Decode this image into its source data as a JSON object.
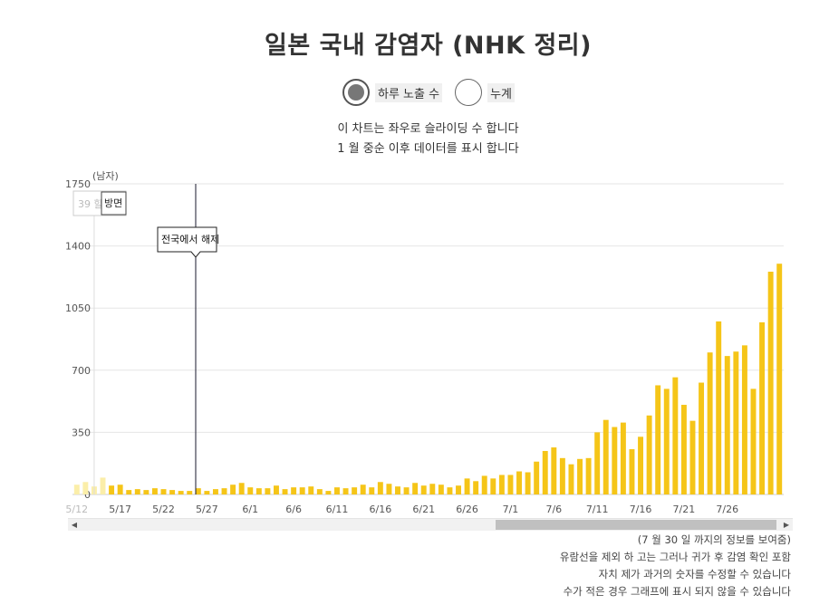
{
  "title": "일본 국내 감염자 (NHK 정리)",
  "radio_options": [
    {
      "label": "하루 노출 수",
      "selected": true
    },
    {
      "label": "누계",
      "selected": false
    }
  ],
  "notes": [
    "이 차트는 좌우로 슬라이딩 수 합니다",
    "1 월 중순 이후 데이터를 표시 합니다"
  ],
  "footnotes": [
    "(7 월 30 일 까지의 정보를 보여줌)",
    "유람선을 제외 하 고는 그러나 귀가 후 감염 확인 포함",
    "자치 제가 과거의 숫자를 수정할 수 있습니다",
    "수가 적은 경우 그래프에 표시 되지 않을 수 있습니다"
  ],
  "colors": {
    "bar": "#f5c518",
    "grid": "#e6e6e6",
    "axis": "#999999"
  },
  "chart_data": {
    "type": "bar",
    "ylabel": "(남자)",
    "ylim": [
      0,
      1750
    ],
    "yticks": [
      0,
      350,
      700,
      1050,
      1400,
      1750
    ],
    "x_start": "5/12",
    "x_end": "7/30",
    "xtick_labels": [
      "5/12",
      "5/17",
      "5/22",
      "5/27",
      "6/1",
      "6/6",
      "6/11",
      "6/16",
      "6/21",
      "6/26",
      "7/1",
      "7/6",
      "7/11",
      "7/16",
      "7/21",
      "7/26"
    ],
    "values": [
      55,
      70,
      45,
      95,
      50,
      55,
      25,
      30,
      25,
      35,
      30,
      25,
      20,
      20,
      35,
      20,
      30,
      35,
      55,
      65,
      40,
      35,
      35,
      50,
      30,
      40,
      40,
      45,
      30,
      20,
      40,
      35,
      40,
      55,
      40,
      70,
      60,
      45,
      40,
      65,
      50,
      60,
      55,
      40,
      50,
      90,
      75,
      105,
      90,
      110,
      110,
      130,
      125,
      185,
      245,
      265,
      205,
      170,
      200,
      205,
      350,
      420,
      380,
      405,
      255,
      325,
      445,
      615,
      595,
      660,
      505,
      415,
      630,
      800,
      975,
      780,
      805,
      840,
      595,
      970,
      1255,
      1300
    ],
    "annotations": [
      {
        "date": "5/14",
        "label_parts": [
          "39 할",
          "방면"
        ]
      },
      {
        "date": "5/25",
        "label": "전국에서 해제"
      }
    ]
  }
}
